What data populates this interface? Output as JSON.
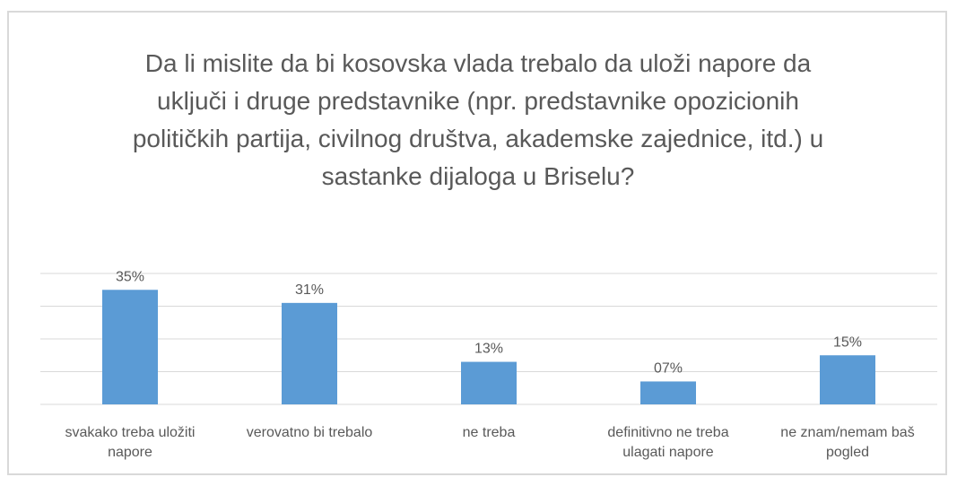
{
  "chart_data": {
    "type": "bar",
    "title": "Da li mislite da bi kosovska vlada trebalo da uloži napore da uključi i druge predstavnike (npr. predstavnike opozicionih političkih partija, civilnog društva, akademske zajednice, itd.) u sastanke dijaloga u Briselu?",
    "categories": [
      "svakako treba uložiti napore",
      "verovatno bi trebalo",
      "ne treba",
      "definitivno ne treba ulagati napore",
      "ne znam/nemam baš pogled"
    ],
    "values": [
      35,
      31,
      13,
      7,
      15
    ],
    "value_labels": [
      "35%",
      "31%",
      "13%",
      "07%",
      "15%"
    ],
    "color": "#5b9bd5",
    "ylim": [
      0,
      40
    ],
    "yticks": [
      0,
      10,
      20,
      30,
      40
    ],
    "grid": true
  }
}
